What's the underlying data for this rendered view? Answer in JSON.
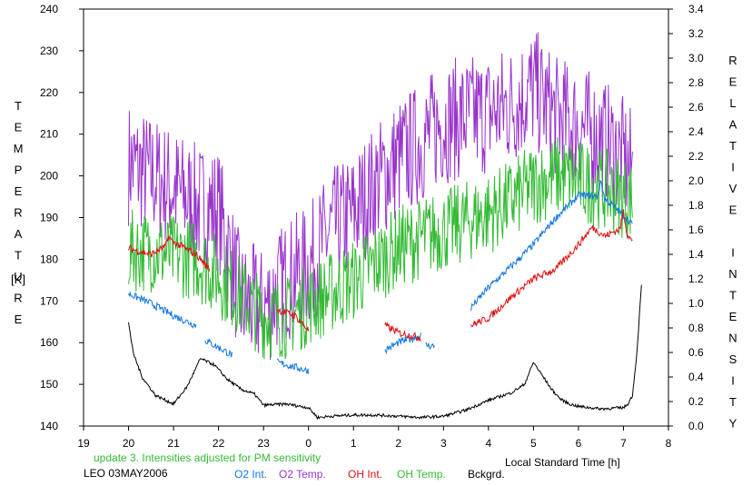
{
  "chart_data": {
    "type": "line",
    "xlabel": "Local Standard Time [h]",
    "ylabel_left": "TEMPERATURE",
    "ylabel_left_unit": "[K]",
    "ylabel_right": "RELATIVE INTENSITY",
    "x_tick_labels": [
      "19",
      "20",
      "21",
      "22",
      "23",
      "0",
      "1",
      "2",
      "3",
      "4",
      "5",
      "6",
      "7",
      "8"
    ],
    "xlim": [
      19,
      32
    ],
    "ylim_left": [
      140,
      240
    ],
    "ylim_right": [
      0.0,
      3.4
    ],
    "left_ticks": [
      140,
      150,
      160,
      170,
      180,
      190,
      200,
      210,
      220,
      230,
      240
    ],
    "right_ticks": [
      "0.0",
      "0.2",
      "0.4",
      "0.6",
      "0.8",
      "1.0",
      "1.2",
      "1.4",
      "1.6",
      "1.8",
      "2.0",
      "2.2",
      "2.4",
      "2.6",
      "2.8",
      "3.0",
      "3.2",
      "3.4"
    ],
    "annotation": "update 3. Intensities adjusted for PM sensitivity",
    "station": "LEO 03MAY2006",
    "series": [
      {
        "name": "O2 Temp.",
        "color": "#9933cc",
        "axis": "left",
        "x": [
          20.0,
          20.5,
          21.0,
          21.5,
          22.0,
          22.5,
          23.0,
          23.5,
          24.0,
          24.5,
          25.0,
          25.5,
          26.0,
          26.5,
          27.0,
          27.5,
          28.0,
          28.5,
          29.0,
          29.5,
          30.0,
          30.5,
          31.0,
          31.2
        ],
        "y": [
          203,
          200,
          197,
          193,
          192,
          170,
          168,
          175,
          178,
          187,
          191,
          198,
          204,
          208,
          213,
          214,
          215,
          217,
          221,
          214,
          212,
          209,
          204,
          201
        ],
        "noise": 15
      },
      {
        "name": "OH Temp.",
        "color": "#33bb33",
        "axis": "left",
        "x": [
          20.0,
          20.5,
          21.0,
          21.5,
          22.0,
          22.5,
          23.0,
          23.5,
          24.0,
          24.5,
          25.0,
          25.5,
          26.0,
          26.5,
          27.0,
          27.5,
          28.0,
          28.5,
          29.0,
          29.5,
          30.0,
          30.5,
          31.0,
          31.2
        ],
        "y": [
          182,
          182,
          181,
          180,
          176,
          171,
          166,
          166,
          169,
          172,
          175,
          179,
          183,
          185,
          187,
          189,
          191,
          194,
          198,
          200,
          199,
          197,
          195,
          194
        ],
        "noise": 10
      },
      {
        "name": "O2 Int.",
        "color": "#1177dd",
        "axis": "right",
        "segments": [
          {
            "x": [
              20.0,
              20.5,
              21.0,
              21.5
            ],
            "y": [
              1.08,
              1.0,
              0.9,
              0.82
            ]
          },
          {
            "x": [
              21.7,
              22.0,
              22.3
            ],
            "y": [
              0.7,
              0.64,
              0.58
            ]
          },
          {
            "x": [
              23.3,
              23.7,
              24.0
            ],
            "y": [
              0.52,
              0.48,
              0.45
            ]
          },
          {
            "x": [
              25.7,
              26.0,
              26.5
            ],
            "y": [
              0.62,
              0.68,
              0.74
            ]
          },
          {
            "x": [
              26.6,
              26.8
            ],
            "y": [
              0.66,
              0.65
            ]
          },
          {
            "x": [
              27.6,
              28.0,
              28.5,
              29.0,
              29.5,
              30.0,
              30.3,
              30.6,
              31.0,
              31.2
            ],
            "y": [
              0.96,
              1.13,
              1.3,
              1.48,
              1.7,
              1.88,
              1.88,
              1.85,
              1.72,
              1.64
            ],
            "sparkle": [
              30.5,
              2.0
            ]
          }
        ],
        "noise": 0.03
      },
      {
        "name": "OH Int.",
        "color": "#dd1111",
        "axis": "right",
        "segments": [
          {
            "x": [
              20.0,
              20.5,
              21.0,
              21.5,
              21.8
            ],
            "y": [
              1.45,
              1.4,
              1.5,
              1.4,
              1.28
            ],
            "sparkle": [
              20.9,
              1.55
            ]
          },
          {
            "x": [
              23.3,
              23.7,
              24.0
            ],
            "y": [
              0.95,
              0.9,
              0.78
            ]
          },
          {
            "x": [
              25.7,
              26.0,
              26.5
            ],
            "y": [
              0.82,
              0.76,
              0.72
            ]
          },
          {
            "x": [
              27.6,
              28.0,
              28.5,
              29.0,
              29.5,
              30.0,
              30.3,
              30.6,
              31.0,
              31.2
            ],
            "y": [
              0.82,
              0.88,
              1.05,
              1.2,
              1.28,
              1.48,
              1.62,
              1.55,
              1.62,
              1.5
            ],
            "sparkle": [
              31.0,
              1.75
            ]
          }
        ],
        "noise": 0.03
      },
      {
        "name": "Bckgrd.",
        "color": "#000000",
        "axis": "right",
        "x": [
          20.0,
          20.1,
          20.3,
          20.6,
          21.0,
          21.3,
          21.6,
          21.9,
          22.2,
          22.5,
          22.8,
          23.0,
          23.5,
          24.0,
          24.2,
          24.5,
          25.0,
          25.5,
          26.0,
          26.5,
          27.0,
          27.5,
          28.0,
          28.5,
          28.8,
          29.0,
          29.4,
          29.6,
          29.8,
          30.0,
          30.5,
          31.0,
          31.1,
          31.2,
          31.3,
          31.4
        ],
        "y": [
          0.85,
          0.6,
          0.4,
          0.25,
          0.18,
          0.32,
          0.55,
          0.5,
          0.38,
          0.3,
          0.26,
          0.17,
          0.18,
          0.15,
          0.07,
          0.08,
          0.09,
          0.09,
          0.08,
          0.07,
          0.08,
          0.13,
          0.21,
          0.27,
          0.34,
          0.52,
          0.3,
          0.22,
          0.18,
          0.16,
          0.14,
          0.15,
          0.18,
          0.25,
          0.6,
          1.15
        ],
        "noise": 0.012
      }
    ]
  }
}
